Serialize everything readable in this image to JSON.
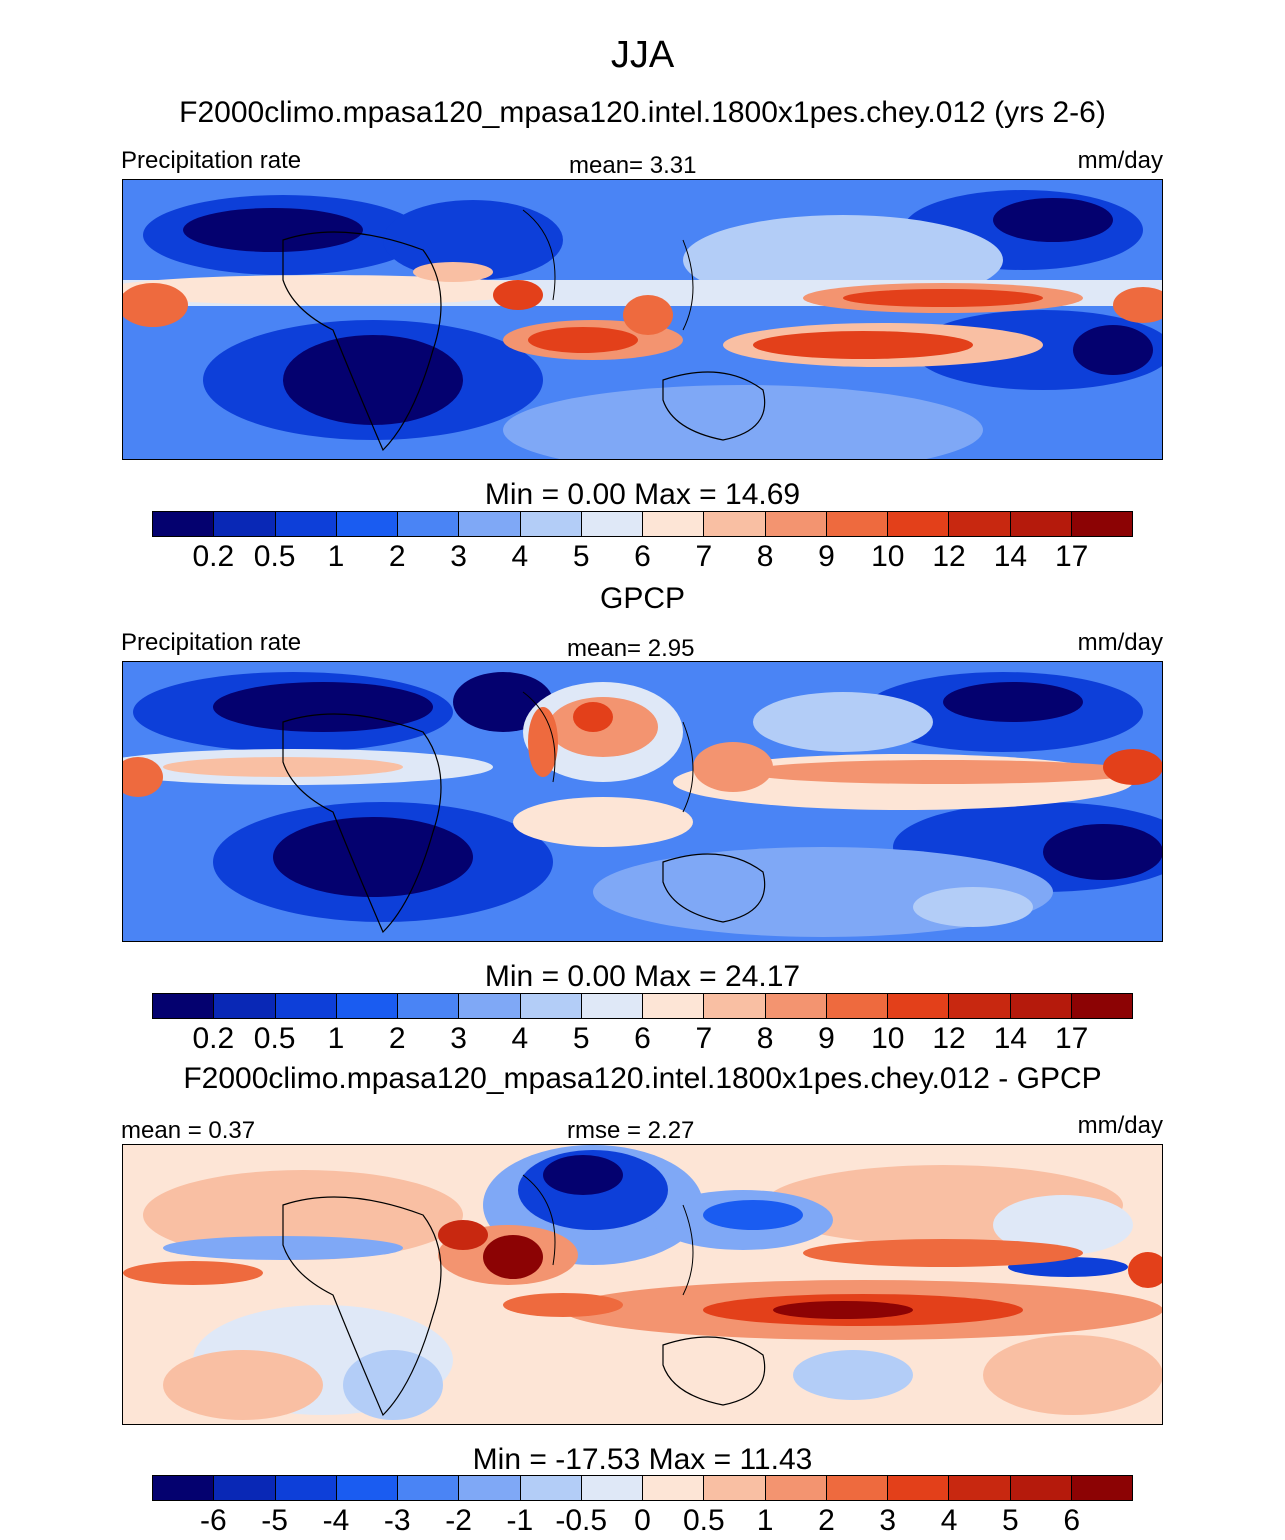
{
  "title": "JJA",
  "units_word": "mm/day",
  "panels": [
    {
      "heading": "F2000climo.mpasa120_mpasa120.intel.1800x1pes.chey.012 (yrs 2-6)",
      "left_label": "Precipitation rate",
      "center_label": "mean=   3.31",
      "right_label": "mm/day",
      "map_name": "model-precipitation-map",
      "range_text": "Min =   0.00 Max =  14.69",
      "ticks": [
        "0.2",
        "0.5",
        "1",
        "2",
        "3",
        "4",
        "5",
        "6",
        "7",
        "8",
        "9",
        "10",
        "12",
        "14",
        "17"
      ],
      "colors": [
        "#04016f",
        "#0928b6",
        "#0d3fd9",
        "#1a5cf1",
        "#4a84f5",
        "#7fa8f6",
        "#b3cdf7",
        "#dfe8f7",
        "#fde5d6",
        "#f9bfa3",
        "#f39470",
        "#ee6a3e",
        "#e3401a",
        "#c82810",
        "#b51a0c",
        "#8c0304"
      ]
    },
    {
      "heading": "GPCP",
      "left_label": "Precipitation rate",
      "center_label": "mean=   2.95",
      "right_label": "mm/day",
      "map_name": "gpcp-precipitation-map",
      "range_text": "Min =   0.00 Max =  24.17",
      "ticks": [
        "0.2",
        "0.5",
        "1",
        "2",
        "3",
        "4",
        "5",
        "6",
        "7",
        "8",
        "9",
        "10",
        "12",
        "14",
        "17"
      ],
      "colors": [
        "#04016f",
        "#0928b6",
        "#0d3fd9",
        "#1a5cf1",
        "#4a84f5",
        "#7fa8f6",
        "#b3cdf7",
        "#dfe8f7",
        "#fde5d6",
        "#f9bfa3",
        "#f39470",
        "#ee6a3e",
        "#e3401a",
        "#c82810",
        "#b51a0c",
        "#8c0304"
      ]
    },
    {
      "heading": "F2000climo.mpasa120_mpasa120.intel.1800x1pes.chey.012 - GPCP",
      "left_label": "mean =   0.37",
      "center_label": "rmse =   2.27",
      "right_label": "mm/day",
      "map_name": "difference-precipitation-map",
      "range_text": "Min = -17.53 Max =  11.43",
      "ticks": [
        "-6",
        "-5",
        "-4",
        "-3",
        "-2",
        "-1",
        "-0.5",
        "0",
        "0.5",
        "1",
        "2",
        "3",
        "4",
        "5",
        "6"
      ],
      "colors": [
        "#04016f",
        "#0928b6",
        "#0d3fd9",
        "#1a5cf1",
        "#4a84f5",
        "#7fa8f6",
        "#b3cdf7",
        "#dfe8f7",
        "#fde5d6",
        "#f9bfa3",
        "#f39470",
        "#ee6a3e",
        "#e3401a",
        "#c82810",
        "#b51a0c",
        "#8c0304"
      ]
    }
  ]
}
